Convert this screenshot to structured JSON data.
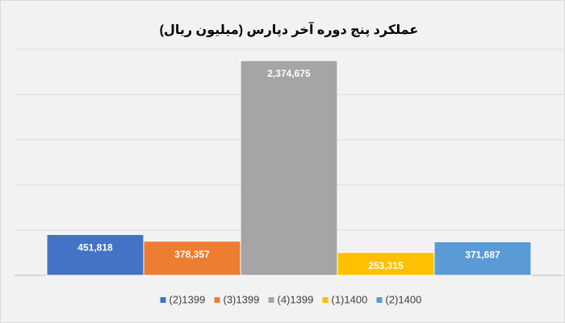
{
  "chart_data": {
    "type": "bar",
    "title": "عملکرد پنج دوره آخر دپارس (میلیون ریال)",
    "series": [
      {
        "name": "(2)1399",
        "color": "#4472c4",
        "values": [
          451818
        ],
        "value_labels": [
          "451,818"
        ]
      },
      {
        "name": "(3)1399",
        "color": "#ed7d31",
        "values": [
          378357
        ],
        "value_labels": [
          "378,357"
        ]
      },
      {
        "name": "(4)1399",
        "color": "#a5a5a5",
        "values": [
          2374675
        ],
        "value_labels": [
          "2,374,675"
        ]
      },
      {
        "name": "(1)1400",
        "color": "#ffc000",
        "values": [
          253315
        ],
        "value_labels": [
          "253,315"
        ]
      },
      {
        "name": "(2)1400",
        "color": "#5b9bd5",
        "values": [
          371687
        ],
        "value_labels": [
          "371,687"
        ]
      }
    ],
    "ylim": [
      0,
      2500000
    ],
    "yticks": [
      0,
      500000,
      1000000,
      1500000,
      2000000,
      2500000
    ],
    "grid": true,
    "legend": "bottom"
  }
}
